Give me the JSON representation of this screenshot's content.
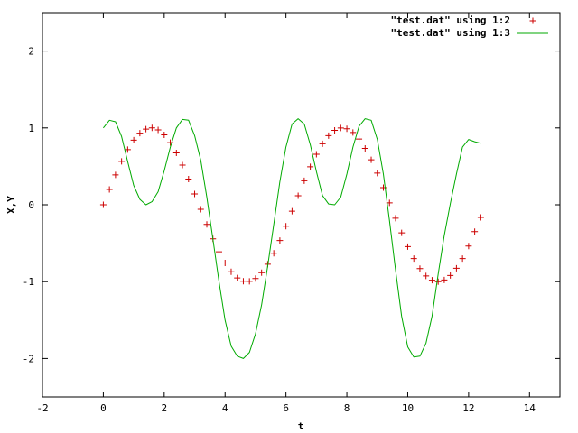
{
  "chart_data": {
    "type": "line",
    "title": "",
    "xlabel": "t",
    "ylabel": "X,Y",
    "xlim": [
      -2,
      15
    ],
    "ylim": [
      -2.5,
      2.5
    ],
    "xticks": [
      -2,
      0,
      2,
      4,
      6,
      8,
      10,
      12,
      14
    ],
    "yticks": [
      -2,
      -1,
      0,
      1,
      2
    ],
    "grid": false,
    "legend_position": "top-right",
    "series": [
      {
        "name": "\"test.dat\" using 1:2",
        "style": "points",
        "marker": "plus",
        "color": "#cc0000",
        "x": [
          0.0,
          0.2,
          0.4,
          0.6,
          0.8,
          1.0,
          1.2,
          1.4,
          1.6,
          1.8,
          2.0,
          2.2,
          2.4,
          2.6,
          2.8,
          3.0,
          3.2,
          3.4,
          3.6,
          3.8,
          4.0,
          4.2,
          4.4,
          4.6,
          4.8,
          5.0,
          5.2,
          5.4,
          5.6,
          5.8,
          6.0,
          6.2,
          6.4,
          6.6,
          6.8,
          7.0,
          7.2,
          7.4,
          7.6,
          7.8,
          8.0,
          8.2,
          8.4,
          8.6,
          8.8,
          9.0,
          9.2,
          9.4,
          9.6,
          9.8,
          10.0,
          10.2,
          10.4,
          10.6,
          10.8,
          11.0,
          11.2,
          11.4,
          11.6,
          11.8,
          12.0,
          12.2,
          12.4
        ],
        "y": [
          0.0,
          0.199,
          0.389,
          0.565,
          0.717,
          0.841,
          0.932,
          0.985,
          1.0,
          0.974,
          0.909,
          0.808,
          0.675,
          0.516,
          0.335,
          0.141,
          -0.058,
          -0.256,
          -0.443,
          -0.612,
          -0.757,
          -0.872,
          -0.952,
          -0.994,
          -0.996,
          -0.959,
          -0.883,
          -0.773,
          -0.631,
          -0.465,
          -0.279,
          -0.083,
          0.117,
          0.312,
          0.494,
          0.657,
          0.794,
          0.899,
          0.968,
          0.999,
          0.989,
          0.941,
          0.855,
          0.734,
          0.585,
          0.412,
          0.223,
          0.025,
          -0.174,
          -0.366,
          -0.544,
          -0.7,
          -0.83,
          -0.926,
          -0.981,
          -1.0,
          -0.979,
          -0.92,
          -0.826,
          -0.7,
          -0.537,
          -0.349,
          -0.165
        ]
      },
      {
        "name": "\"test.dat\" using 1:3",
        "style": "line",
        "color": "#00aa00",
        "x": [
          0.0,
          0.2,
          0.4,
          0.6,
          0.8,
          1.0,
          1.2,
          1.4,
          1.6,
          1.8,
          2.0,
          2.2,
          2.4,
          2.6,
          2.8,
          3.0,
          3.2,
          3.4,
          3.6,
          3.8,
          4.0,
          4.2,
          4.4,
          4.6,
          4.8,
          5.0,
          5.2,
          5.4,
          5.6,
          5.8,
          6.0,
          6.2,
          6.4,
          6.6,
          6.8,
          7.0,
          7.2,
          7.4,
          7.6,
          7.8,
          8.0,
          8.2,
          8.4,
          8.6,
          8.8,
          9.0,
          9.2,
          9.4,
          9.6,
          9.8,
          10.0,
          10.2,
          10.4,
          10.6,
          10.8,
          11.0,
          11.2,
          11.4,
          11.6,
          11.8,
          12.0,
          12.2,
          12.4
        ],
        "y": [
          1.0,
          1.1,
          1.08,
          0.89,
          0.56,
          0.25,
          0.07,
          0.0,
          0.04,
          0.17,
          0.44,
          0.75,
          1.0,
          1.11,
          1.1,
          0.9,
          0.58,
          0.1,
          -0.45,
          -1.0,
          -1.5,
          -1.84,
          -1.97,
          -2.0,
          -1.92,
          -1.68,
          -1.3,
          -0.8,
          -0.25,
          0.3,
          0.75,
          1.05,
          1.12,
          1.05,
          0.78,
          0.43,
          0.12,
          0.01,
          0.0,
          0.1,
          0.4,
          0.75,
          1.02,
          1.12,
          1.1,
          0.85,
          0.4,
          -0.2,
          -0.85,
          -1.45,
          -1.85,
          -1.98,
          -1.97,
          -1.8,
          -1.45,
          -0.9,
          -0.4,
          0.02,
          0.4,
          0.75,
          0.85,
          0.82,
          0.8
        ]
      }
    ]
  }
}
